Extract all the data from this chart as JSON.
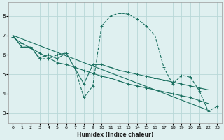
{
  "bg_color": "#dff0f0",
  "grid_color": "#b8d8d8",
  "line_color": "#1a7060",
  "xlabel": "Humidex (Indice chaleur)",
  "xlim": [
    -0.5,
    23.5
  ],
  "ylim": [
    2.5,
    8.7
  ],
  "xticks": [
    0,
    1,
    2,
    3,
    4,
    5,
    6,
    7,
    8,
    9,
    10,
    11,
    12,
    13,
    14,
    15,
    16,
    17,
    18,
    19,
    20,
    21,
    22,
    23
  ],
  "yticks": [
    3,
    4,
    5,
    6,
    7,
    8
  ],
  "curve_peak_x": [
    0,
    1,
    2,
    3,
    4,
    5,
    6,
    7,
    8,
    9,
    10,
    11,
    12,
    13,
    14,
    15,
    16,
    17,
    18,
    19,
    20,
    21,
    22,
    23
  ],
  "curve_peak_y": [
    7.0,
    6.4,
    6.4,
    5.8,
    5.8,
    6.0,
    6.1,
    5.3,
    3.8,
    4.4,
    7.5,
    8.0,
    8.15,
    8.1,
    7.85,
    7.5,
    7.0,
    5.35,
    4.5,
    4.95,
    4.85,
    4.15,
    3.1,
    3.35
  ],
  "curve_straight_x": [
    0,
    1,
    2,
    3,
    4,
    5,
    6,
    7,
    8,
    9,
    10,
    11,
    12,
    13,
    14,
    15,
    16,
    17,
    18,
    19,
    20,
    21,
    22
  ],
  "curve_straight_y": [
    6.9,
    6.6,
    6.35,
    6.1,
    5.85,
    5.6,
    5.5,
    5.35,
    5.2,
    5.05,
    4.9,
    4.8,
    4.65,
    4.5,
    4.4,
    4.3,
    4.2,
    4.1,
    4.0,
    3.9,
    3.8,
    3.65,
    3.5
  ],
  "curve_dip_x": [
    0,
    1,
    2,
    3,
    4,
    5,
    6,
    7,
    8,
    9,
    10,
    11,
    12,
    13,
    14,
    15,
    16,
    17,
    18,
    19,
    20,
    21,
    22
  ],
  "curve_dip_y": [
    7.0,
    6.4,
    6.4,
    5.85,
    6.0,
    5.8,
    6.1,
    5.3,
    4.5,
    5.5,
    5.5,
    5.35,
    5.2,
    5.1,
    5.0,
    4.9,
    4.8,
    4.7,
    4.6,
    4.5,
    4.4,
    4.3,
    4.2
  ],
  "curve_line_x": [
    0,
    22
  ],
  "curve_line_y": [
    7.0,
    3.15
  ]
}
